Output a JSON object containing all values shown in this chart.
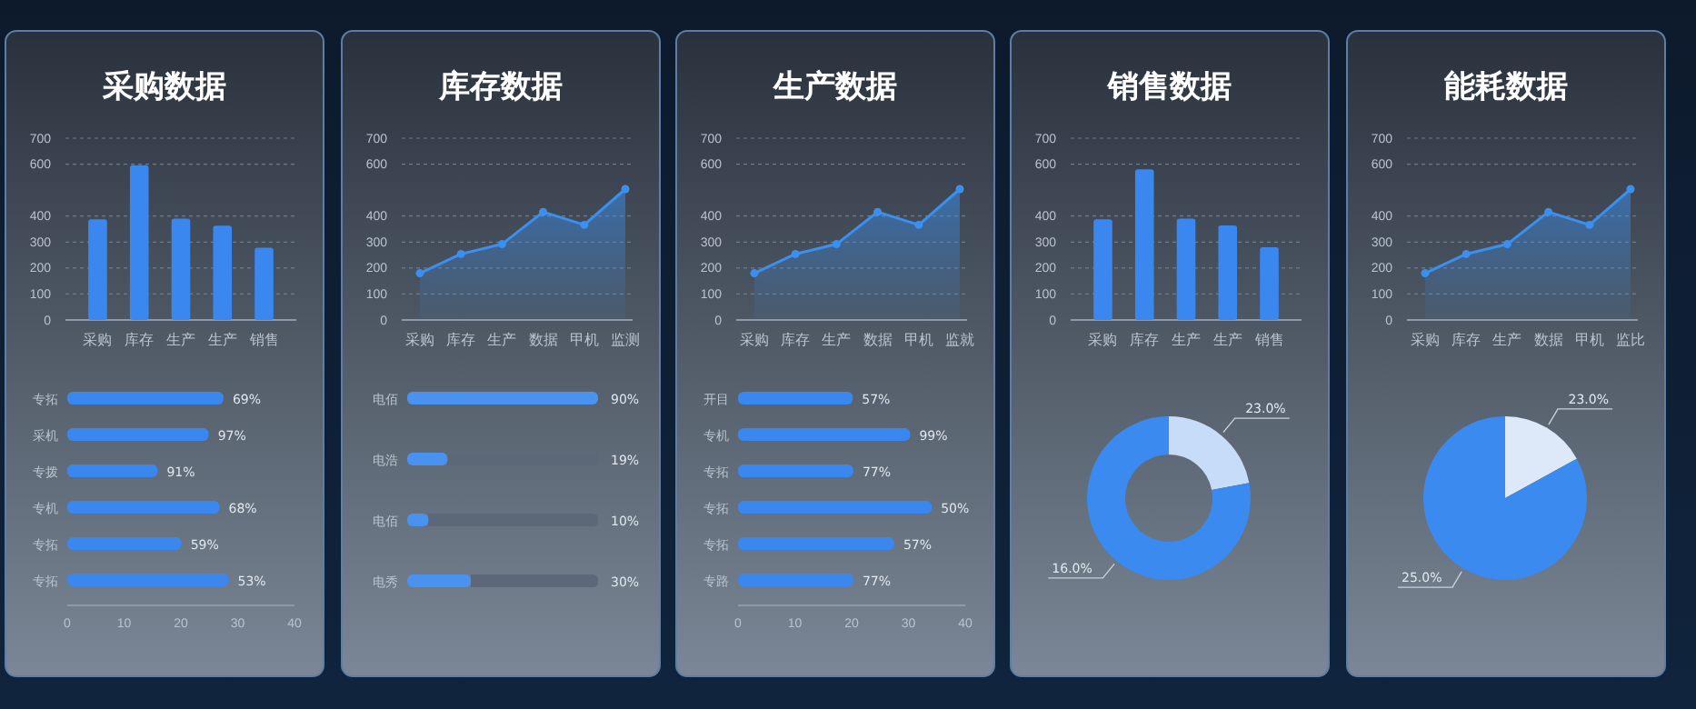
{
  "chart_data": [
    {
      "type": "bar",
      "title": "采购数据",
      "categories": [
        "采购",
        "库存",
        "生产",
        "生产",
        "销售"
      ],
      "values": [
        388,
        596,
        390,
        363,
        278
      ],
      "color": "#3b87f0",
      "ylim": [
        0,
        700
      ],
      "yticks": [
        0,
        100,
        200,
        300,
        400,
        600,
        700
      ],
      "grid": "y"
    },
    {
      "type": "bar",
      "orientation": "horizontal",
      "categories": [
        "专拓",
        "采机",
        "专拨",
        "专机",
        "专拓",
        "专拓"
      ],
      "values": [
        27.5,
        24.9,
        15.9,
        26.8,
        20.1,
        28.4
      ],
      "annotations": [
        "69%",
        "97%",
        "91%",
        "68%",
        "59%",
        "53%"
      ],
      "color": "#3b87f0",
      "xlim": [
        0,
        40
      ],
      "xticks": [
        0,
        10,
        20,
        30,
        40
      ]
    },
    {
      "type": "area",
      "title": "库存数据",
      "categories": [
        "采购",
        "库存",
        "生产",
        "数据",
        "甲机",
        "监测"
      ],
      "values": [
        180,
        254,
        292,
        416,
        366,
        504
      ],
      "color": "#3a8fef",
      "marker": "circle",
      "ylim": [
        0,
        700
      ],
      "yticks": [
        0,
        100,
        200,
        300,
        400,
        600,
        700
      ],
      "grid": "y"
    },
    {
      "type": "bar",
      "orientation": "horizontal",
      "categories": [
        "电佰",
        "电浩",
        "电佰",
        "电秀"
      ],
      "values": [
        90,
        19,
        10,
        30
      ],
      "value_labels": [
        "90%",
        "19%",
        "10%",
        "30%"
      ],
      "color": "#4a92f0"
    },
    {
      "type": "area",
      "title": "生产数据",
      "categories": [
        "采购",
        "库存",
        "生产",
        "数据",
        "甲机",
        "监就"
      ],
      "values": [
        180,
        254,
        292,
        416,
        366,
        504
      ],
      "color": "#3a8fef",
      "marker": "circle",
      "ylim": [
        0,
        700
      ],
      "yticks": [
        0,
        100,
        200,
        300,
        400,
        600,
        700
      ],
      "grid": "y"
    },
    {
      "type": "bar",
      "orientation": "horizontal",
      "categories": [
        "开目",
        "专机",
        "专拓",
        "专拓",
        "专拓",
        "专路"
      ],
      "values": [
        20.2,
        30.3,
        20.3,
        34.1,
        27.5,
        20.3
      ],
      "annotations": [
        "57%",
        "99%",
        "77%",
        "50%",
        "57%",
        "77%"
      ],
      "color": "#3b87f0",
      "xlim": [
        0,
        40
      ],
      "xticks": [
        0,
        10,
        20,
        30,
        40
      ]
    },
    {
      "type": "bar",
      "title": "销售数据",
      "categories": [
        "采购",
        "库存",
        "生产",
        "生产",
        "销售"
      ],
      "values": [
        388,
        580,
        390,
        364,
        280
      ],
      "color": "#3b87f0",
      "ylim": [
        0,
        700
      ],
      "yticks": [
        0,
        100,
        200,
        300,
        400,
        600,
        700
      ],
      "grid": "y"
    },
    {
      "type": "donut",
      "categories": [
        null,
        null
      ],
      "values": [
        22,
        78
      ],
      "annotations": [
        "23.0%",
        "16.0%"
      ],
      "colors": [
        "#c6dcf8",
        "#3a8af0"
      ]
    },
    {
      "type": "area",
      "title": "能耗数据",
      "categories": [
        "采购",
        "库存",
        "生产",
        "数据",
        "甲机",
        "监比"
      ],
      "values": [
        180,
        254,
        292,
        416,
        366,
        504
      ],
      "color": "#3a8fef",
      "marker": "circle",
      "ylim": [
        0,
        700
      ],
      "yticks": [
        0,
        100,
        200,
        300,
        400,
        600,
        700
      ],
      "grid": "y"
    },
    {
      "type": "pie",
      "categories": [
        null,
        null
      ],
      "values": [
        17,
        83
      ],
      "annotations": [
        "23.0%",
        "25.0%"
      ],
      "colors": [
        "#dde9f8",
        "#3a8af0"
      ]
    }
  ]
}
